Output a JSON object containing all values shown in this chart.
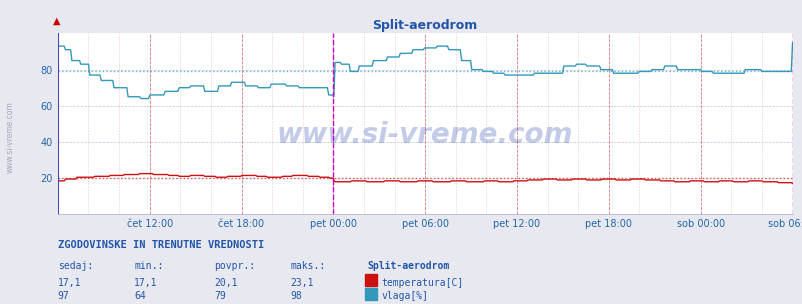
{
  "title": "Split-aerodrom",
  "title_color": "#2255aa",
  "bg_color": "#e8e8f0",
  "plot_bg_color": "#ffffff",
  "grid_color_red": "#dd8888",
  "grid_color_minor": "#ccccdd",
  "ylim": [
    0,
    100
  ],
  "yticks": [
    20,
    40,
    60,
    80
  ],
  "xticklabels": [
    "čet 12:00",
    "čet 18:00",
    "pet 00:00",
    "pet 06:00",
    "pet 12:00",
    "pet 18:00",
    "sob 00:00",
    "sob 06:00"
  ],
  "temp_color": "#cc1111",
  "humidity_color": "#3399bb",
  "temp_avg_color": "#dd4444",
  "hum_avg_color": "#55aacc",
  "magenta_color": "#cc00cc",
  "blue_left_color": "#4444bb",
  "watermark": "www.si-vreme.com",
  "watermark_color": "#1133aa",
  "watermark_alpha": 0.25,
  "footer_title": "ZGODOVINSKE IN TRENUTNE VREDNOSTI",
  "footer_cols": [
    "sedaj:",
    "min.:",
    "povpr.:",
    "maks.:"
  ],
  "footer_station": "Split-aerodrom",
  "footer_temp_vals": [
    "17,1",
    "17,1",
    "20,1",
    "23,1"
  ],
  "footer_humidity_vals": [
    "97",
    "64",
    "79",
    "98"
  ],
  "footer_temp_label": "temperatura[C]",
  "footer_humidity_label": "vlaga[%]",
  "footer_color": "#2255aa",
  "label_color": "#2266aa",
  "ylabel_text": "www.si-vreme.com",
  "temp_avg": 20.1,
  "hum_avg": 79,
  "n_points": 576
}
